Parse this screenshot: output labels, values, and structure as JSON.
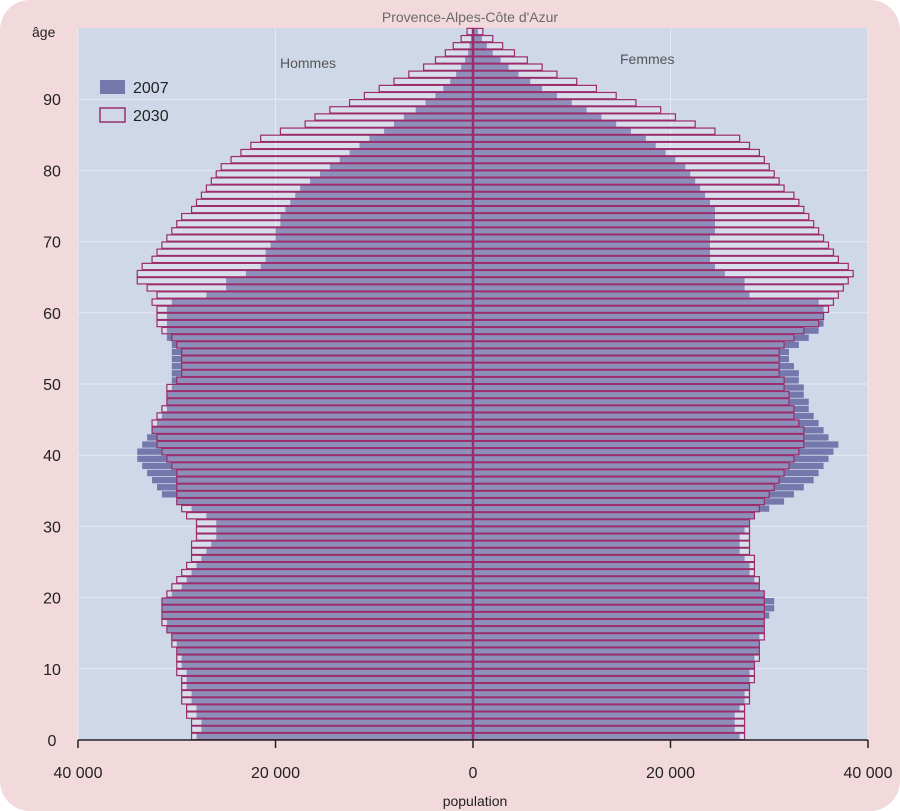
{
  "chart_data": {
    "type": "bar",
    "subtype": "population-pyramid",
    "title": "Provence-Alpes-Côte d'Azur",
    "ylabel": "âge",
    "xlabel": "population",
    "left_side_label": "Hommes",
    "right_side_label": "Femmes",
    "ylim": [
      0,
      100
    ],
    "xlim": [
      -40000,
      40000
    ],
    "x_ticks": [
      -40000,
      -20000,
      0,
      20000,
      40000
    ],
    "x_tick_labels": [
      "40 000",
      "20 000",
      "0",
      "20 000",
      "40 000"
    ],
    "y_ticks": [
      0,
      10,
      20,
      30,
      40,
      50,
      60,
      70,
      80,
      90
    ],
    "y_tick_labels": [
      "0",
      "10",
      "20",
      "30",
      "40",
      "50",
      "60",
      "70",
      "80",
      "90"
    ],
    "grid": true,
    "legend": "top-left",
    "colors": {
      "series_2007": "#7478ad",
      "series_2030": "#9c2c6a",
      "plot_bg": "#cfd8e8",
      "frame_bg": "#f2d9dc",
      "axis": "#9c2c6a"
    },
    "ages": [
      0,
      1,
      2,
      3,
      4,
      5,
      6,
      7,
      8,
      9,
      10,
      11,
      12,
      13,
      14,
      15,
      16,
      17,
      18,
      19,
      20,
      21,
      22,
      23,
      24,
      25,
      26,
      27,
      28,
      29,
      30,
      31,
      32,
      33,
      34,
      35,
      36,
      37,
      38,
      39,
      40,
      41,
      42,
      43,
      44,
      45,
      46,
      47,
      48,
      49,
      50,
      51,
      52,
      53,
      54,
      55,
      56,
      57,
      58,
      59,
      60,
      61,
      62,
      63,
      64,
      65,
      66,
      67,
      68,
      69,
      70,
      71,
      72,
      73,
      74,
      75,
      76,
      77,
      78,
      79,
      80,
      81,
      82,
      83,
      84,
      85,
      86,
      87,
      88,
      89,
      90,
      91,
      92,
      93,
      94,
      95,
      96,
      97,
      98,
      99
    ],
    "series": [
      {
        "name": "2007",
        "hommes": [
          28000,
          27500,
          27500,
          28000,
          28000,
          28500,
          28500,
          29000,
          29000,
          29000,
          29500,
          29500,
          30000,
          30000,
          30500,
          31000,
          31000,
          31500,
          31500,
          31500,
          30500,
          29500,
          29000,
          28500,
          28000,
          27500,
          27000,
          26500,
          26000,
          26000,
          26000,
          27000,
          28500,
          30000,
          31500,
          32000,
          32500,
          33000,
          33500,
          34000,
          34000,
          33500,
          33000,
          32500,
          32000,
          31500,
          31000,
          31000,
          31000,
          30500,
          30500,
          30500,
          30500,
          30500,
          30500,
          30500,
          31000,
          31000,
          31000,
          31000,
          31000,
          30500,
          27000,
          25000,
          25000,
          23000,
          21500,
          21000,
          21000,
          20500,
          20000,
          20000,
          19500,
          19500,
          19000,
          18500,
          18000,
          17500,
          16500,
          15500,
          14500,
          13500,
          12500,
          11500,
          10500,
          9000,
          8000,
          7000,
          5800,
          4800,
          3800,
          3000,
          2300,
          1700,
          1200,
          800,
          500,
          350,
          200,
          100
        ],
        "femmes": [
          27000,
          26500,
          26500,
          26500,
          27000,
          27500,
          27500,
          28000,
          28000,
          28000,
          28500,
          28500,
          29000,
          29000,
          29000,
          29500,
          29500,
          30000,
          30500,
          30500,
          29500,
          29000,
          28500,
          28000,
          28000,
          27500,
          27000,
          27000,
          27000,
          27500,
          28000,
          28500,
          30000,
          31500,
          32500,
          33500,
          34500,
          35000,
          35500,
          36000,
          36500,
          37000,
          36000,
          35500,
          35000,
          34500,
          34000,
          34000,
          33500,
          33500,
          33000,
          33000,
          32500,
          32000,
          32000,
          33000,
          34000,
          35000,
          35500,
          35500,
          35500,
          35000,
          28000,
          27500,
          27500,
          25500,
          24500,
          24000,
          24000,
          24000,
          24000,
          24500,
          24500,
          24500,
          24500,
          24000,
          23500,
          23000,
          22500,
          22000,
          21500,
          20500,
          19500,
          18500,
          17500,
          16000,
          14500,
          13000,
          11500,
          10000,
          8500,
          7000,
          5800,
          4600,
          3600,
          2800,
          2000,
          1400,
          900,
          500
        ]
      },
      {
        "name": "2030",
        "hommes": [
          28500,
          28500,
          28500,
          29000,
          29000,
          29500,
          29500,
          29500,
          29500,
          30000,
          30000,
          30000,
          30000,
          30500,
          30500,
          31000,
          31500,
          31500,
          31500,
          31500,
          31000,
          30500,
          30000,
          29500,
          29000,
          28500,
          28500,
          28500,
          28000,
          28000,
          28000,
          29000,
          29500,
          30000,
          30000,
          30000,
          30000,
          30000,
          30500,
          31000,
          31500,
          32000,
          32000,
          32500,
          32500,
          32000,
          31500,
          31000,
          31000,
          31000,
          30000,
          29500,
          29500,
          29500,
          29500,
          30000,
          30500,
          31500,
          32000,
          32000,
          32000,
          32500,
          32000,
          33000,
          34000,
          34000,
          33500,
          32500,
          32000,
          31500,
          31000,
          30500,
          30000,
          29500,
          28500,
          28000,
          27500,
          27000,
          26500,
          26000,
          25500,
          24500,
          23500,
          22500,
          21500,
          19500,
          17000,
          16000,
          14500,
          12500,
          11000,
          9500,
          8000,
          6500,
          5000,
          3800,
          2800,
          2000,
          1200,
          600
        ],
        "femmes": [
          27500,
          27500,
          27500,
          27500,
          27500,
          28000,
          28000,
          28000,
          28500,
          28500,
          28500,
          29000,
          29000,
          29000,
          29500,
          29500,
          29500,
          29500,
          29500,
          29500,
          29500,
          29000,
          29000,
          28500,
          28500,
          28500,
          28000,
          28000,
          28000,
          28000,
          28000,
          28500,
          29000,
          29500,
          30000,
          30500,
          31000,
          31500,
          32000,
          32500,
          33000,
          33500,
          33500,
          33500,
          33000,
          32500,
          32500,
          32000,
          32000,
          31500,
          31500,
          31000,
          31000,
          31000,
          31000,
          31500,
          32500,
          33500,
          35000,
          35500,
          36000,
          36500,
          37000,
          37500,
          38000,
          38500,
          38000,
          37000,
          36500,
          36000,
          35500,
          35000,
          34500,
          34000,
          33500,
          33000,
          32500,
          31500,
          31000,
          30500,
          30000,
          29500,
          29000,
          28000,
          27000,
          24500,
          22500,
          20500,
          19000,
          16500,
          14500,
          12500,
          10500,
          8500,
          7000,
          5500,
          4200,
          3000,
          2000,
          1000
        ]
      }
    ]
  }
}
